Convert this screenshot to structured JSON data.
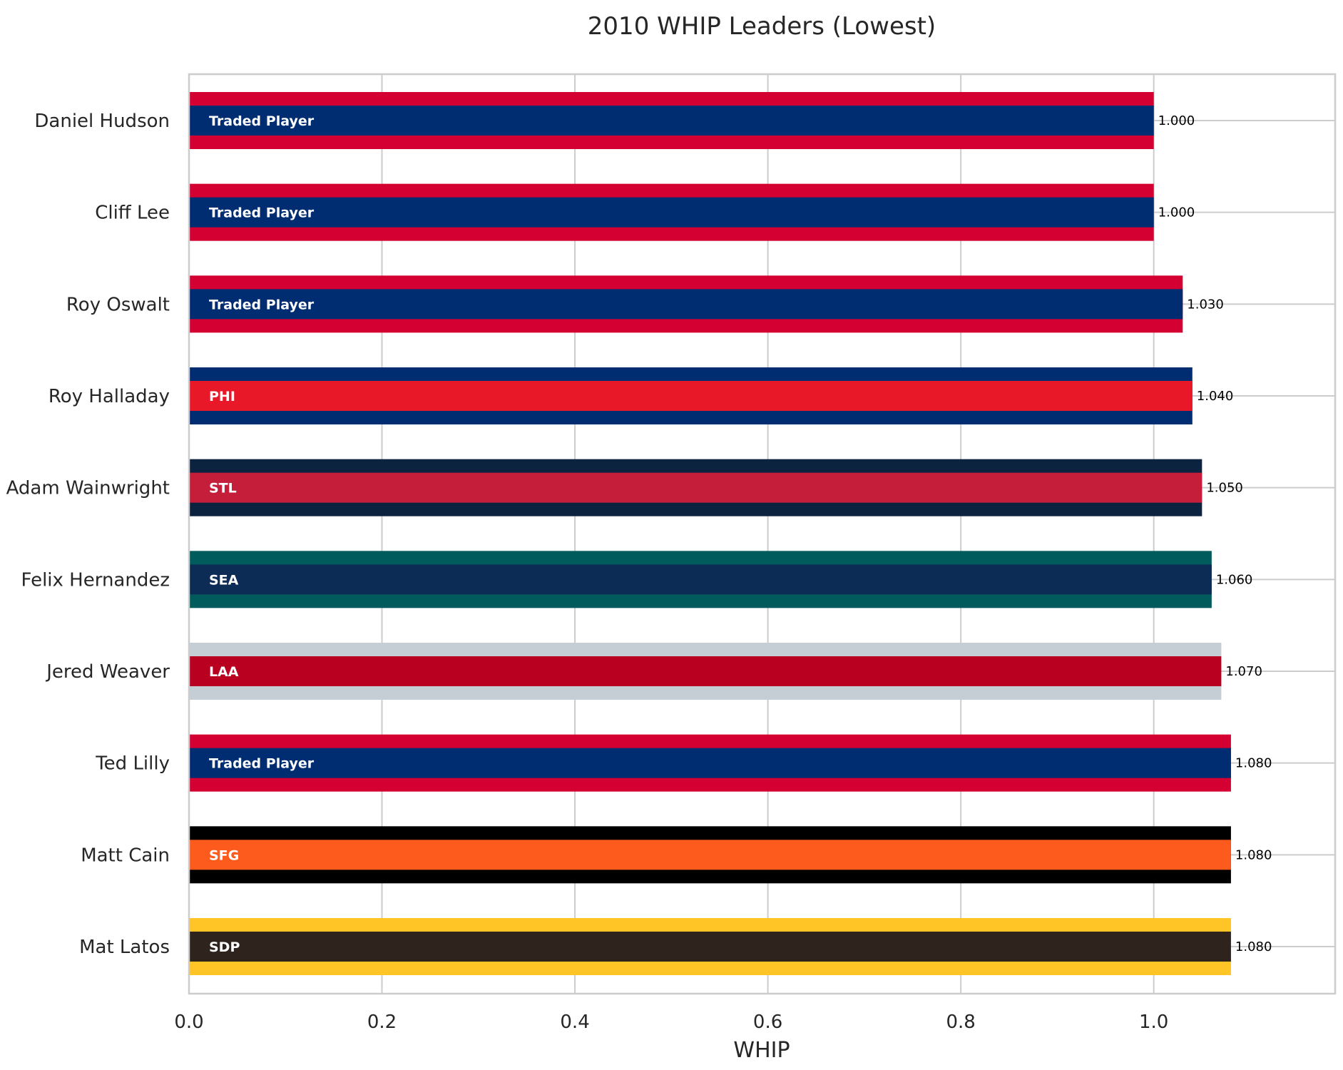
{
  "chart_data": {
    "type": "bar",
    "orientation": "horizontal",
    "title": "2010 WHIP Leaders (Lowest)",
    "xlabel": "WHIP",
    "ylabel": "",
    "xlim": [
      0,
      1.188
    ],
    "xticks": [
      "0.0",
      "0.2",
      "0.4",
      "0.6",
      "0.8",
      "1.0"
    ],
    "grid": true,
    "categories": [
      "Daniel Hudson",
      "Cliff Lee",
      "Roy Oswalt",
      "Roy Halladay",
      "Adam Wainwright",
      "Felix Hernandez",
      "Jered Weaver",
      "Ted Lilly",
      "Matt Cain",
      "Mat Latos"
    ],
    "values": [
      1.0,
      1.0,
      1.03,
      1.04,
      1.05,
      1.06,
      1.07,
      1.08,
      1.08,
      1.08
    ],
    "value_labels": [
      "1.000",
      "1.000",
      "1.030",
      "1.040",
      "1.050",
      "1.060",
      "1.070",
      "1.080",
      "1.080",
      "1.080"
    ],
    "teams": [
      "Traded Player",
      "Traded Player",
      "Traded Player",
      "PHI",
      "STL",
      "SEA",
      "LAA",
      "Traded Player",
      "SFG",
      "SDP"
    ],
    "outer_colors": [
      "#D50032",
      "#D50032",
      "#D50032",
      "#002D72",
      "#0C2340",
      "#005C5C",
      "#C4CED4",
      "#D50032",
      "#000000",
      "#FFC425"
    ],
    "inner_colors": [
      "#002D72",
      "#002D72",
      "#002D72",
      "#E81828",
      "#C41E3A",
      "#0C2C56",
      "#BA0021",
      "#002D72",
      "#FD5A1E",
      "#2F241D"
    ]
  }
}
